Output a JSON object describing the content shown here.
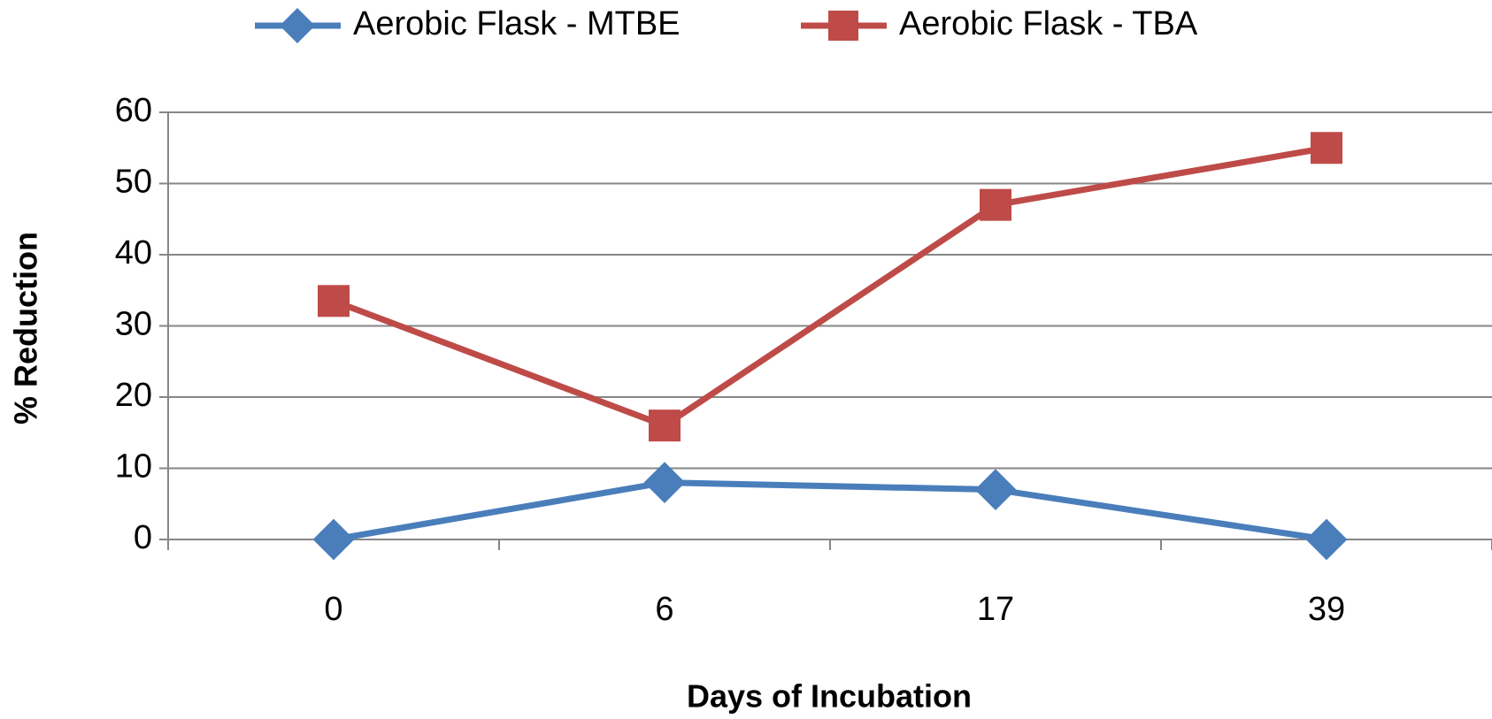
{
  "chart_data": {
    "type": "line",
    "x_label": "Days of Incubation",
    "y_label": "% Reduction",
    "categories": [
      "0",
      "6",
      "17",
      "39"
    ],
    "series": [
      {
        "name": "Aerobic Flask - MTBE",
        "color": "#4a7ebb",
        "marker": "diamond",
        "values": [
          0,
          8,
          7,
          0
        ]
      },
      {
        "name": "Aerobic Flask - TBA",
        "color": "#be4b48",
        "marker": "square",
        "values": [
          33.5,
          16,
          47,
          55
        ]
      }
    ],
    "ylim": [
      0,
      60
    ],
    "yticks": [
      0,
      10,
      20,
      30,
      40,
      50,
      60
    ],
    "grid": true,
    "legend": "top"
  }
}
